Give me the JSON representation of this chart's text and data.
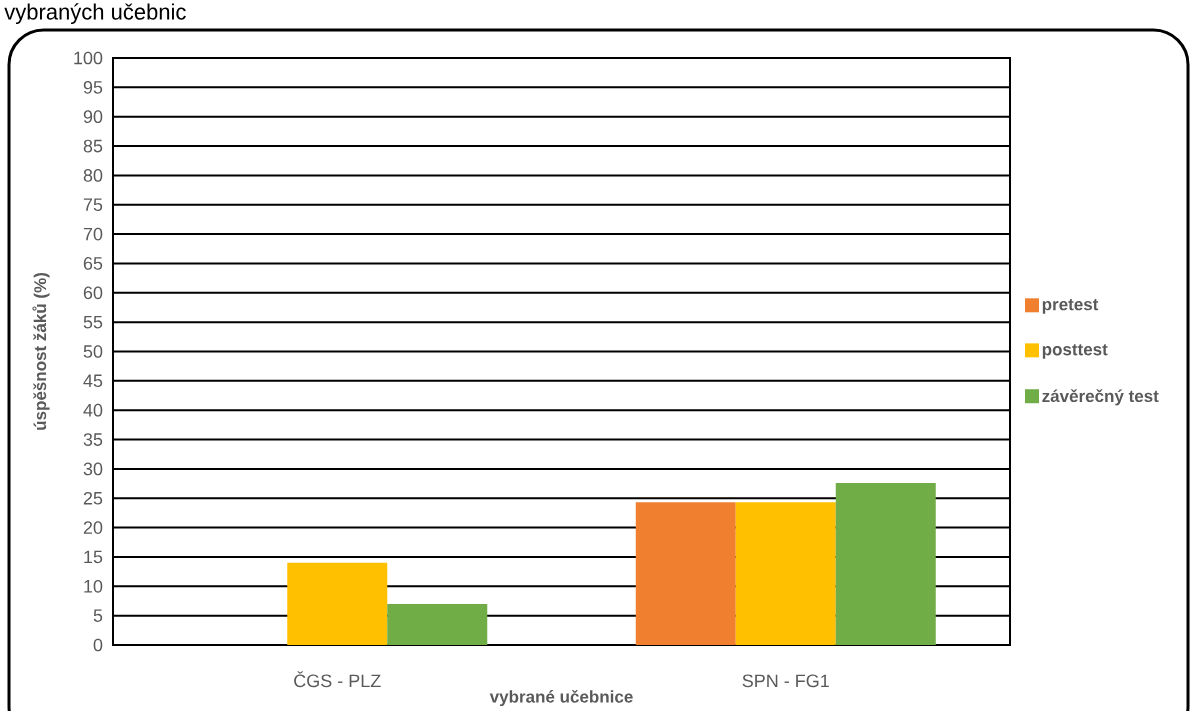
{
  "chart_data": {
    "type": "bar",
    "title": "vybraných učebnic",
    "xlabel": "vybrané učebnice",
    "ylabel": "úspěšnost žáků (%)",
    "categories": [
      "ČGS - PLZ",
      "SPN - FG1"
    ],
    "series": [
      {
        "name": "pretest",
        "color": "#f07f30",
        "values": [
          null,
          24.3
        ]
      },
      {
        "name": "posttest",
        "color": "#ffc000",
        "values": [
          14,
          24.3
        ]
      },
      {
        "name": "závěrečný test",
        "color": "#70ad47",
        "values": [
          7,
          27.6
        ]
      }
    ],
    "ylim": [
      0,
      100
    ],
    "yticks": [
      0,
      5,
      10,
      15,
      20,
      25,
      30,
      35,
      40,
      45,
      50,
      55,
      60,
      65,
      70,
      75,
      80,
      85,
      90,
      95,
      100
    ],
    "grid": "y",
    "legend": "right"
  }
}
